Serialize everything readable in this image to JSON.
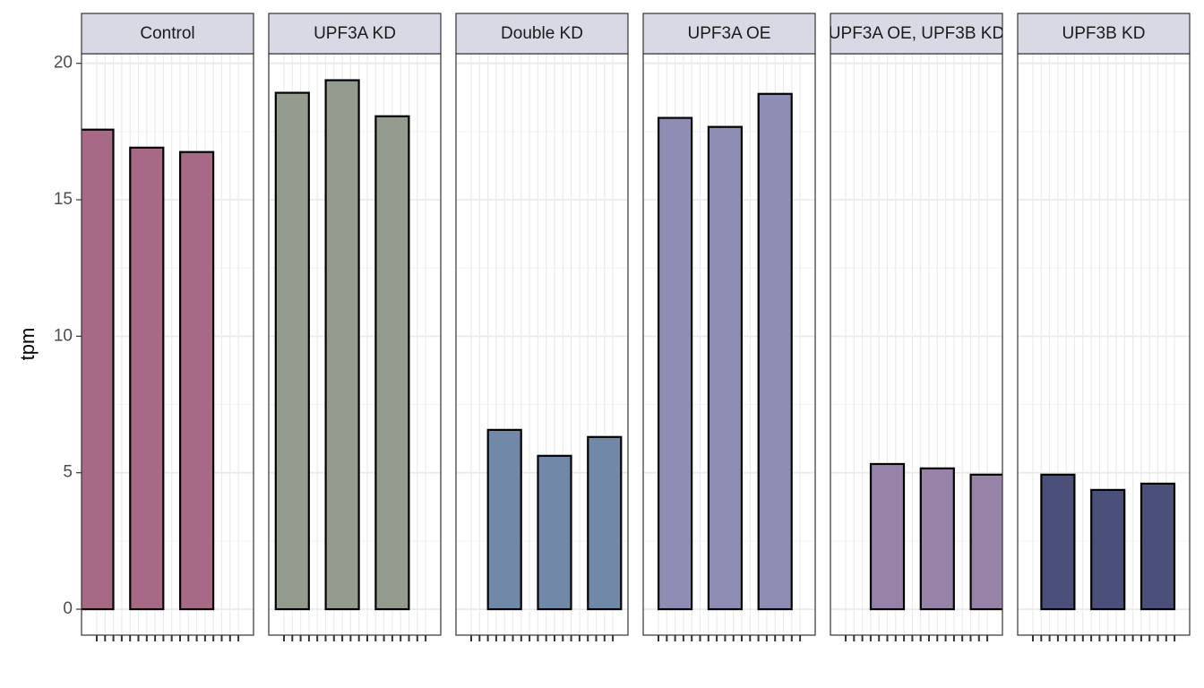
{
  "chart_data": [
    {
      "type": "bar",
      "title": "Control",
      "ylabel": "tpm",
      "color": "#a66a87",
      "categories": [
        null,
        null,
        null,
        null,
        null,
        null,
        null,
        null,
        null,
        null,
        null,
        null,
        null,
        null,
        null,
        null,
        null,
        null
      ],
      "values": [
        17.57,
        null,
        null,
        null,
        null,
        null,
        16.91,
        null,
        null,
        null,
        null,
        null,
        16.75,
        null,
        null,
        null,
        null,
        null
      ],
      "ylim": [
        -0.95,
        20.35
      ],
      "yticks": [
        0,
        5,
        10,
        15,
        20
      ],
      "grid": true
    },
    {
      "type": "bar",
      "title": "UPF3A KD",
      "color": "#939c8f",
      "categories": [
        null,
        null,
        null,
        null,
        null,
        null,
        null,
        null,
        null,
        null,
        null,
        null,
        null,
        null,
        null,
        null,
        null,
        null
      ],
      "values": [
        null,
        18.92,
        null,
        null,
        null,
        null,
        null,
        19.38,
        null,
        null,
        null,
        null,
        null,
        18.06,
        null,
        null,
        null,
        null
      ],
      "ylim": [
        -0.95,
        20.35
      ],
      "yticks": [
        0,
        5,
        10,
        15,
        20
      ],
      "grid": true
    },
    {
      "type": "bar",
      "title": "Double KD",
      "color": "#7188a9",
      "categories": [
        null,
        null,
        null,
        null,
        null,
        null,
        null,
        null,
        null,
        null,
        null,
        null,
        null,
        null,
        null,
        null,
        null,
        null
      ],
      "values": [
        null,
        null,
        null,
        null,
        6.57,
        null,
        null,
        null,
        null,
        null,
        5.62,
        null,
        null,
        null,
        null,
        null,
        6.31,
        null
      ],
      "ylim": [
        -0.95,
        20.35
      ],
      "yticks": [
        0,
        5,
        10,
        15,
        20
      ],
      "grid": true
    },
    {
      "type": "bar",
      "title": "UPF3A OE",
      "color": "#8e8eb5",
      "categories": [
        null,
        null,
        null,
        null,
        null,
        null,
        null,
        null,
        null,
        null,
        null,
        null,
        null,
        null,
        null,
        null,
        null,
        null
      ],
      "values": [
        null,
        null,
        18.0,
        null,
        null,
        null,
        null,
        null,
        17.67,
        null,
        null,
        null,
        null,
        null,
        18.88,
        null,
        null,
        null
      ],
      "ylim": [
        -0.95,
        20.35
      ],
      "yticks": [
        0,
        5,
        10,
        15,
        20
      ],
      "grid": true
    },
    {
      "type": "bar",
      "title": "UPF3A OE, UPF3B KD",
      "color": "#9883a8",
      "categories": [
        null,
        null,
        null,
        null,
        null,
        null,
        null,
        null,
        null,
        null,
        null,
        null,
        null,
        null,
        null,
        null,
        null,
        null
      ],
      "values": [
        null,
        null,
        null,
        null,
        null,
        5.32,
        null,
        null,
        null,
        null,
        null,
        5.16,
        null,
        null,
        null,
        null,
        null,
        4.93
      ],
      "ylim": [
        -0.95,
        20.35
      ],
      "yticks": [
        0,
        5,
        10,
        15,
        20
      ],
      "grid": true
    },
    {
      "type": "bar",
      "title": "UPF3B KD",
      "color": "#4b507a",
      "categories": [
        null,
        null,
        null,
        null,
        null,
        null,
        null,
        null,
        null,
        null,
        null,
        null,
        null,
        null,
        null,
        null,
        null,
        null
      ],
      "values": [
        null,
        null,
        null,
        4.93,
        null,
        null,
        null,
        null,
        null,
        4.37,
        null,
        null,
        null,
        null,
        null,
        4.6,
        null,
        null
      ],
      "ylim": [
        -0.95,
        20.35
      ],
      "yticks": [
        0,
        5,
        10,
        15,
        20
      ],
      "grid": true
    }
  ]
}
